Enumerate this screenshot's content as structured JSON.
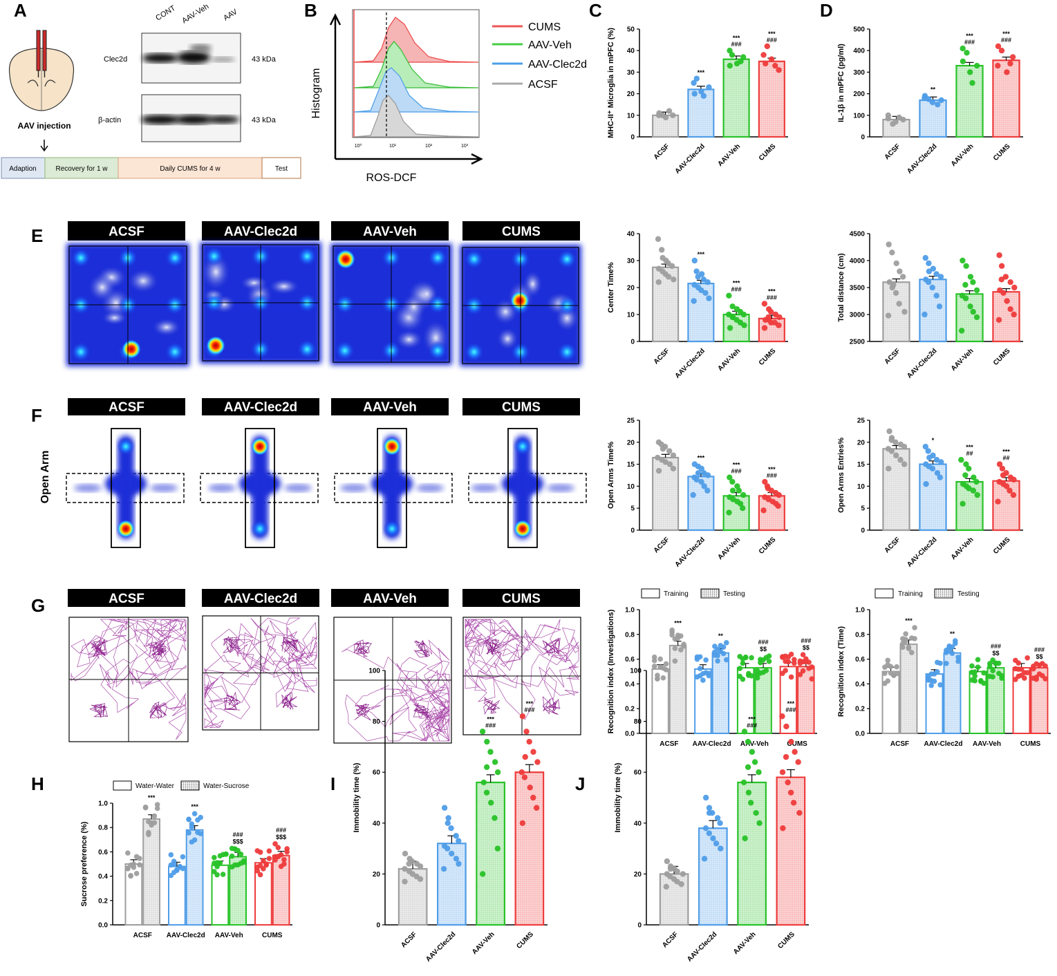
{
  "colors": {
    "ACSF": "#9e9e9e",
    "AAV-Clec2d": "#4f9de8",
    "AAV-Veh": "#27c227",
    "CUMS": "#ee3b3b"
  },
  "panel_letters": [
    "A",
    "B",
    "C",
    "D",
    "E",
    "F",
    "G",
    "H",
    "I",
    "J"
  ],
  "panelA": {
    "lanes": [
      "CONT",
      "AAV-Veh",
      "AAV"
    ],
    "blots": [
      {
        "name": "Clec2d",
        "kda": "43 kDa"
      },
      {
        "name": "β-actin",
        "kda": "43 kDa"
      }
    ],
    "injection_label": "AAV injection",
    "timeline": [
      "Adaption",
      "Recovery for 1 w",
      "Daily CUMS  for 4 w",
      "Test"
    ]
  },
  "panelB": {
    "ylabel": "Histogram",
    "xlabel": "ROS-DCF",
    "ticks": [
      "10⁰",
      "10¹",
      "10²",
      "10³"
    ],
    "legend": [
      {
        "name": "CUMS",
        "color": "#ee5555"
      },
      {
        "name": "AAV-Veh",
        "color": "#44cc44"
      },
      {
        "name": "AAV-Clec2d",
        "color": "#4a9ee8"
      },
      {
        "name": "ACSF",
        "color": "#aaaaaa"
      }
    ]
  },
  "open_arm_label": "Open Arm",
  "group_titles": [
    "ACSF",
    "AAV-Clec2d",
    "AAV-Veh",
    "CUMS"
  ],
  "train_test_legend": [
    "Training",
    "Testing"
  ],
  "water_legend": [
    "Water-Water",
    "Water-Sucrose"
  ],
  "chart_data": [
    {
      "id": "C",
      "type": "bar",
      "ylabel": "MHC-II⁺ Microglia in mPFC (%)",
      "ylim": [
        0,
        50
      ],
      "yticks": [
        0,
        10,
        20,
        30,
        40,
        50
      ],
      "categories": [
        "ACSF",
        "AAV-Clec2d",
        "AAV-Veh",
        "CUMS"
      ],
      "values": [
        10,
        22,
        36,
        35
      ],
      "sig": [
        [
          "",
          ""
        ],
        [
          "***",
          ""
        ],
        [
          "***",
          "###"
        ],
        [
          "***",
          "###"
        ]
      ],
      "points": [
        [
          11,
          10,
          9,
          12,
          10,
          10
        ],
        [
          25,
          27,
          21,
          19,
          23,
          20
        ],
        [
          40,
          38,
          34,
          35,
          37,
          33
        ],
        [
          38,
          42,
          36,
          33,
          31,
          34
        ]
      ]
    },
    {
      "id": "D",
      "type": "bar",
      "ylabel": "IL-1β in mPFC (pg/ml)",
      "ylim": [
        0,
        500
      ],
      "yticks": [
        0,
        100,
        200,
        300,
        400,
        500
      ],
      "categories": [
        "ACSF",
        "AAV-Clec2d",
        "AAV-Veh",
        "CUMS"
      ],
      "values": [
        80,
        170,
        330,
        355
      ],
      "sig": [
        [
          "",
          ""
        ],
        [
          "**",
          ""
        ],
        [
          "***",
          "###"
        ],
        [
          "***",
          "###"
        ]
      ],
      "points": [
        [
          100,
          60,
          70,
          90,
          80,
          85
        ],
        [
          190,
          175,
          160,
          150,
          170,
          180
        ],
        [
          410,
          390,
          300,
          250,
          330,
          350
        ],
        [
          420,
          400,
          300,
          340,
          370,
          330
        ]
      ]
    },
    {
      "id": "E1",
      "type": "bar",
      "ylabel": "Center Time%",
      "ylim": [
        0,
        40
      ],
      "yticks": [
        0,
        10,
        20,
        30,
        40
      ],
      "categories": [
        "ACSF",
        "AAV-Clec2d",
        "AAV-Veh",
        "CUMS"
      ],
      "values": [
        27.5,
        21.5,
        10,
        8.5
      ],
      "sig": [
        [
          "",
          ""
        ],
        [
          "***",
          ""
        ],
        [
          "***",
          "###"
        ],
        [
          "***",
          "###"
        ]
      ],
      "points": [
        [
          38,
          34,
          30,
          29,
          28,
          27,
          26,
          25,
          24,
          23,
          22,
          31
        ],
        [
          30,
          26,
          25,
          23,
          22,
          21,
          20,
          19,
          18,
          16,
          15,
          24
        ],
        [
          17,
          13,
          12,
          11,
          10,
          10,
          9,
          8,
          7,
          6,
          5,
          9
        ],
        [
          14,
          12,
          11,
          10,
          9,
          8,
          8,
          7,
          7,
          6,
          5,
          9
        ]
      ]
    },
    {
      "id": "E2",
      "type": "bar",
      "ylabel": "Total distance (cm)",
      "ylim": [
        2500,
        4500
      ],
      "yticks": [
        2500,
        3000,
        3500,
        4000,
        4500
      ],
      "categories": [
        "ACSF",
        "AAV-Clec2d",
        "AAV-Veh",
        "CUMS"
      ],
      "values": [
        3600,
        3650,
        3380,
        3420
      ],
      "sig": [
        [
          "",
          ""
        ],
        [
          "",
          ""
        ],
        [
          "",
          ""
        ],
        [
          "",
          ""
        ]
      ],
      "points": [
        [
          4300,
          4150,
          3950,
          3800,
          3700,
          3600,
          3500,
          3400,
          3200,
          3050,
          2980,
          3550
        ],
        [
          4050,
          3950,
          3850,
          3750,
          3700,
          3650,
          3600,
          3500,
          3350,
          3150,
          3000,
          3800
        ],
        [
          4000,
          3900,
          3700,
          3600,
          3450,
          3350,
          3300,
          3150,
          3050,
          2950,
          2700,
          3550
        ],
        [
          4100,
          3900,
          3700,
          3600,
          3500,
          3450,
          3400,
          3250,
          3100,
          3000,
          2900,
          3650
        ]
      ]
    },
    {
      "id": "F1",
      "type": "bar",
      "ylabel": "Open Arms Time%",
      "ylim": [
        0,
        25
      ],
      "yticks": [
        0,
        5,
        10,
        15,
        20,
        25
      ],
      "categories": [
        "ACSF",
        "AAV-Clec2d",
        "AAV-Veh",
        "CUMS"
      ],
      "values": [
        16.5,
        12.2,
        7.8,
        7.8
      ],
      "sig": [
        [
          "",
          ""
        ],
        [
          "***",
          ""
        ],
        [
          "***",
          "###"
        ],
        [
          "***",
          "###"
        ]
      ],
      "points": [
        [
          20,
          19.5,
          19,
          18,
          17,
          16.5,
          16,
          15.5,
          15,
          14,
          13.5,
          18.5
        ],
        [
          15,
          14.5,
          14,
          13,
          12.5,
          12,
          11.5,
          11,
          10,
          9,
          8,
          13
        ],
        [
          12,
          11,
          10,
          9,
          8,
          7.5,
          7,
          6.5,
          6,
          5,
          4,
          9
        ],
        [
          11,
          10,
          9,
          8.5,
          8,
          7.5,
          7,
          6.5,
          6,
          5.5,
          4.5,
          9.5
        ]
      ]
    },
    {
      "id": "F2",
      "type": "bar",
      "ylabel": "Open Arms Entries%",
      "ylim": [
        0,
        25
      ],
      "yticks": [
        0,
        5,
        10,
        15,
        20,
        25
      ],
      "categories": [
        "ACSF",
        "AAV-Clec2d",
        "AAV-Veh",
        "CUMS"
      ],
      "values": [
        18.5,
        15,
        11,
        11.2
      ],
      "sig": [
        [
          "",
          ""
        ],
        [
          "*",
          ""
        ],
        [
          "***",
          "##"
        ],
        [
          "***",
          "##"
        ]
      ],
      "points": [
        [
          22.5,
          21,
          20,
          19.5,
          19,
          18.5,
          18,
          17,
          16,
          15,
          14,
          20.5
        ],
        [
          19,
          18,
          17,
          16,
          15.5,
          15,
          14.5,
          14,
          13,
          12,
          10.5,
          16.5
        ],
        [
          16,
          15,
          14,
          12,
          11,
          10.5,
          10,
          9.5,
          9,
          8,
          6,
          12.5
        ],
        [
          15,
          14,
          13,
          12,
          11.5,
          11,
          10.5,
          10,
          9,
          8,
          6.5,
          12.5
        ]
      ]
    },
    {
      "id": "G1",
      "type": "grouped_bar",
      "ylabel": "Recognition index (Investigations)",
      "ylim": [
        0,
        1.0
      ],
      "yticks": [
        0.0,
        0.2,
        0.4,
        0.6,
        0.8,
        1.0
      ],
      "categories": [
        "ACSF",
        "AAV-Clec2d",
        "AAV-Veh",
        "CUMS"
      ],
      "series": [
        {
          "name": "Training",
          "values": [
            0.52,
            0.52,
            0.53,
            0.54
          ]
        },
        {
          "name": "Testing",
          "values": [
            0.71,
            0.65,
            0.53,
            0.54
          ]
        }
      ],
      "sig": [
        [
          "***",
          ""
        ],
        [
          "**",
          ""
        ],
        [
          "###",
          "$$"
        ],
        [
          "###",
          "$$"
        ]
      ]
    },
    {
      "id": "G2",
      "type": "grouped_bar",
      "ylabel": "Recognition index (Time)",
      "ylim": [
        0,
        1.0
      ],
      "yticks": [
        0.0,
        0.2,
        0.4,
        0.6,
        0.8,
        1.0
      ],
      "categories": [
        "ACSF",
        "AAV-Clec2d",
        "AAV-Veh",
        "CUMS"
      ],
      "series": [
        {
          "name": "Training",
          "values": [
            0.5,
            0.48,
            0.5,
            0.53
          ]
        },
        {
          "name": "Testing",
          "values": [
            0.72,
            0.65,
            0.53,
            0.53
          ]
        }
      ],
      "sig": [
        [
          "***",
          ""
        ],
        [
          "**",
          ""
        ],
        [
          "###",
          "$$"
        ],
        [
          "###",
          "$$"
        ]
      ]
    },
    {
      "id": "H",
      "type": "grouped_bar",
      "ylabel": "Sucrose preference (%)",
      "ylim": [
        0,
        1.0
      ],
      "yticks": [
        0.0,
        0.2,
        0.4,
        0.6,
        0.8,
        1.0
      ],
      "categories": [
        "ACSF",
        "AAV-Clec2d",
        "AAV-Veh",
        "CUMS"
      ],
      "series": [
        {
          "name": "Water-Water",
          "values": [
            0.5,
            0.48,
            0.49,
            0.51
          ]
        },
        {
          "name": "Water-Sucrose",
          "values": [
            0.87,
            0.78,
            0.56,
            0.57
          ]
        }
      ],
      "sig": [
        [
          "***",
          ""
        ],
        [
          "***",
          ""
        ],
        [
          "###",
          "$$$"
        ],
        [
          "###",
          "$$$"
        ]
      ]
    },
    {
      "id": "I",
      "type": "bar",
      "ylabel": "Immobility time (%)",
      "ylim": [
        0,
        100
      ],
      "yticks": [
        0,
        20,
        40,
        60,
        80,
        100
      ],
      "categories": [
        "ACSF",
        "AAV-Clec2d",
        "AAV-Veh",
        "CUMS"
      ],
      "values": [
        22,
        32,
        56,
        60
      ],
      "sig": [
        [
          "",
          ""
        ],
        [
          "",
          ""
        ],
        [
          "***",
          "###"
        ],
        [
          "***",
          "###"
        ]
      ],
      "points": [
        [
          28,
          26,
          25,
          24,
          23,
          22,
          21,
          20,
          19,
          18,
          17,
          24
        ],
        [
          46,
          42,
          38,
          35,
          33,
          31,
          30,
          28,
          26,
          24,
          22,
          40
        ],
        [
          76,
          72,
          68,
          64,
          60,
          56,
          52,
          48,
          42,
          30,
          20,
          62
        ],
        [
          82,
          76,
          72,
          68,
          64,
          60,
          58,
          54,
          50,
          46,
          40,
          66
        ]
      ]
    },
    {
      "id": "J",
      "type": "bar",
      "ylabel": "Immobility time (%)",
      "ylim": [
        0,
        100
      ],
      "yticks": [
        0,
        20,
        40,
        60,
        80,
        100
      ],
      "categories": [
        "ACSF",
        "AAV-Clec2d",
        "AAV-Veh",
        "CUMS"
      ],
      "values": [
        20,
        38,
        56,
        58
      ],
      "sig": [
        [
          "",
          ""
        ],
        [
          "",
          ""
        ],
        [
          "***",
          "###"
        ],
        [
          "***",
          "###"
        ]
      ],
      "points": [
        [
          25,
          23,
          22,
          21,
          20,
          20,
          19,
          18,
          17,
          16,
          15,
          22
        ],
        [
          50,
          46,
          44,
          42,
          40,
          38,
          36,
          34,
          32,
          30,
          26,
          44
        ],
        [
          76,
          72,
          68,
          64,
          60,
          56,
          52,
          48,
          44,
          40,
          34,
          62
        ],
        [
          82,
          78,
          72,
          68,
          64,
          60,
          56,
          52,
          48,
          44,
          38,
          66
        ]
      ]
    }
  ]
}
